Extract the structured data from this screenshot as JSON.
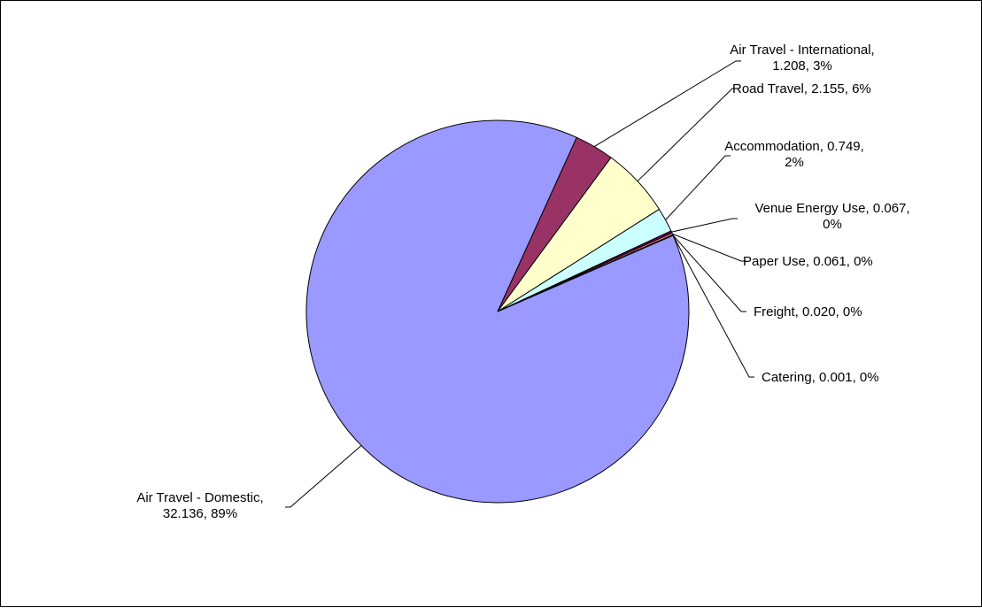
{
  "chart_data": {
    "type": "pie",
    "title": "",
    "slices": [
      {
        "label_lines": [
          "Air Travel - International,",
          "1.208, 3%"
        ],
        "name": "Air Travel - International",
        "value": 1.208,
        "percent": "3%",
        "color": "#993366"
      },
      {
        "label_lines": [
          "Road Travel, 2.155, 6%"
        ],
        "name": "Road Travel",
        "value": 2.155,
        "percent": "6%",
        "color": "#ffffcc"
      },
      {
        "label_lines": [
          "Accommodation, 0.749,",
          "2%"
        ],
        "name": "Accommodation",
        "value": 0.749,
        "percent": "2%",
        "color": "#ccffff"
      },
      {
        "label_lines": [
          "Venue Energy Use, 0.067,",
          "0%"
        ],
        "name": "Venue Energy Use",
        "value": 0.067,
        "percent": "0%",
        "color": "#660066"
      },
      {
        "label_lines": [
          "Paper Use, 0.061, 0%"
        ],
        "name": "Paper Use",
        "value": 0.061,
        "percent": "0%",
        "color": "#ff8080"
      },
      {
        "label_lines": [
          "Freight, 0.020, 0%"
        ],
        "name": "Freight",
        "value": 0.02,
        "percent": "0%",
        "color": "#0066cc"
      },
      {
        "label_lines": [
          "Catering, 0.001, 0%"
        ],
        "name": "Catering",
        "value": 0.001,
        "percent": "0%",
        "color": "#ccccff"
      },
      {
        "label_lines": [
          "Air Travel - Domestic,",
          "32.136, 89%"
        ],
        "name": "Air Travel - Domestic",
        "value": 32.136,
        "percent": "89%",
        "color": "#9999ff"
      }
    ]
  }
}
